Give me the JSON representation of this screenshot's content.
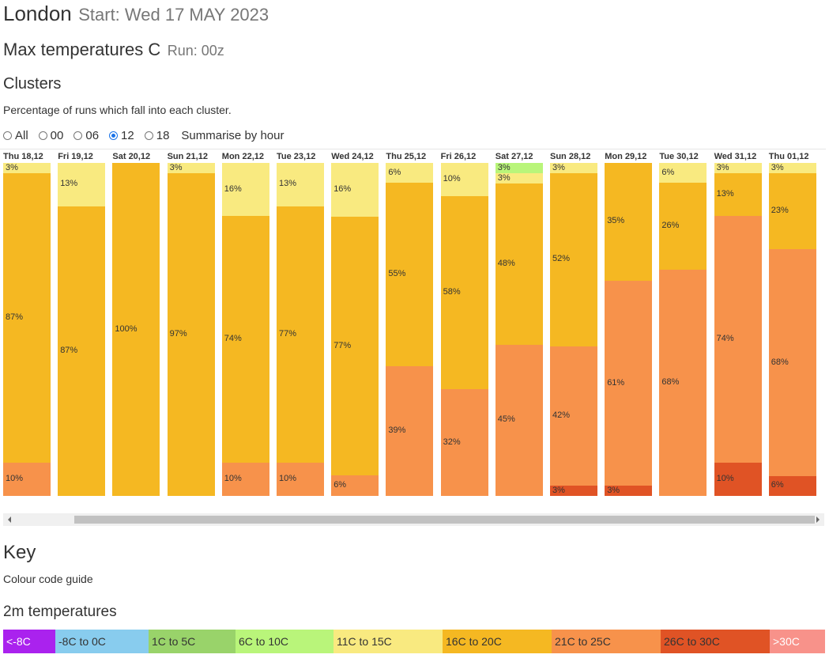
{
  "header": {
    "city": "London",
    "start": "Start: Wed 17 MAY 2023",
    "title": "Max temperatures C",
    "run": "Run: 00z"
  },
  "clusters": {
    "heading": "Clusters",
    "description": "Percentage of runs which fall into each cluster."
  },
  "radios": {
    "options": [
      "All",
      "00",
      "06",
      "12",
      "18"
    ],
    "selected": "12",
    "summarise_label": "Summarise by hour"
  },
  "colors": {
    "lt_-8": "#aa22ee",
    "-8_0": "#88ccee",
    "1_5": "#99d36a",
    "6_10": "#b9f57a",
    "11_15": "#f9ea80",
    "16_20": "#f5b822",
    "21_25": "#f7924b",
    "26_30": "#e05325",
    "gt_30": "#f8928a"
  },
  "chart_data": {
    "type": "bar",
    "stacked": true,
    "categories": [
      "Thu 18,12",
      "Fri 19,12",
      "Sat 20,12",
      "Sun 21,12",
      "Mon 22,12",
      "Tue 23,12",
      "Wed 24,12",
      "Thu 25,12",
      "Fri 26,12",
      "Sat 27,12",
      "Sun 28,12",
      "Mon 29,12",
      "Tue 30,12",
      "Wed 31,12",
      "Thu 01,12"
    ],
    "columns": [
      [
        {
          "band": "11_15",
          "value": 3
        },
        {
          "band": "16_20",
          "value": 87
        },
        {
          "band": "21_25",
          "value": 10
        }
      ],
      [
        {
          "band": "11_15",
          "value": 13
        },
        {
          "band": "16_20",
          "value": 87
        }
      ],
      [
        {
          "band": "16_20",
          "value": 100
        }
      ],
      [
        {
          "band": "11_15",
          "value": 3
        },
        {
          "band": "16_20",
          "value": 97
        }
      ],
      [
        {
          "band": "11_15",
          "value": 16
        },
        {
          "band": "16_20",
          "value": 74
        },
        {
          "band": "21_25",
          "value": 10
        }
      ],
      [
        {
          "band": "11_15",
          "value": 13
        },
        {
          "band": "16_20",
          "value": 77
        },
        {
          "band": "21_25",
          "value": 10
        }
      ],
      [
        {
          "band": "11_15",
          "value": 16
        },
        {
          "band": "16_20",
          "value": 77
        },
        {
          "band": "21_25",
          "value": 6
        }
      ],
      [
        {
          "band": "11_15",
          "value": 6
        },
        {
          "band": "16_20",
          "value": 55
        },
        {
          "band": "21_25",
          "value": 39
        }
      ],
      [
        {
          "band": "11_15",
          "value": 10
        },
        {
          "band": "16_20",
          "value": 58
        },
        {
          "band": "21_25",
          "value": 32
        }
      ],
      [
        {
          "band": "6_10",
          "value": 3
        },
        {
          "band": "11_15",
          "value": 3
        },
        {
          "band": "16_20",
          "value": 48
        },
        {
          "band": "21_25",
          "value": 45
        }
      ],
      [
        {
          "band": "11_15",
          "value": 3
        },
        {
          "band": "16_20",
          "value": 52
        },
        {
          "band": "21_25",
          "value": 42
        },
        {
          "band": "26_30",
          "value": 3
        }
      ],
      [
        {
          "band": "16_20",
          "value": 35
        },
        {
          "band": "21_25",
          "value": 61
        },
        {
          "band": "26_30",
          "value": 3
        }
      ],
      [
        {
          "band": "11_15",
          "value": 6
        },
        {
          "band": "16_20",
          "value": 26
        },
        {
          "band": "21_25",
          "value": 68
        }
      ],
      [
        {
          "band": "11_15",
          "value": 3
        },
        {
          "band": "16_20",
          "value": 13
        },
        {
          "band": "21_25",
          "value": 74
        },
        {
          "band": "26_30",
          "value": 10
        }
      ],
      [
        {
          "band": "11_15",
          "value": 3
        },
        {
          "band": "16_20",
          "value": 23
        },
        {
          "band": "21_25",
          "value": 68
        },
        {
          "band": "26_30",
          "value": 6
        }
      ]
    ],
    "unit": "%"
  },
  "key": {
    "heading": "Key",
    "description": "Colour code guide",
    "subheading": "2m temperatures",
    "items": [
      {
        "label": "<-8C",
        "color": "#aa22ee",
        "text_color": "#ffffff"
      },
      {
        "label": "-8C to 0C",
        "color": "#88ccee",
        "text_color": "#333333"
      },
      {
        "label": "1C to 5C",
        "color": "#99d36a",
        "text_color": "#333333"
      },
      {
        "label": "6C to 10C",
        "color": "#b9f57a",
        "text_color": "#333333"
      },
      {
        "label": "11C to 15C",
        "color": "#f9ea80",
        "text_color": "#333333"
      },
      {
        "label": "16C to 20C",
        "color": "#f5b822",
        "text_color": "#333333"
      },
      {
        "label": "21C to 25C",
        "color": "#f7924b",
        "text_color": "#333333"
      },
      {
        "label": "26C to 30C",
        "color": "#e05325",
        "text_color": "#333333"
      },
      {
        "label": ">30C",
        "color": "#f8928a",
        "text_color": "#ffffff"
      }
    ]
  }
}
